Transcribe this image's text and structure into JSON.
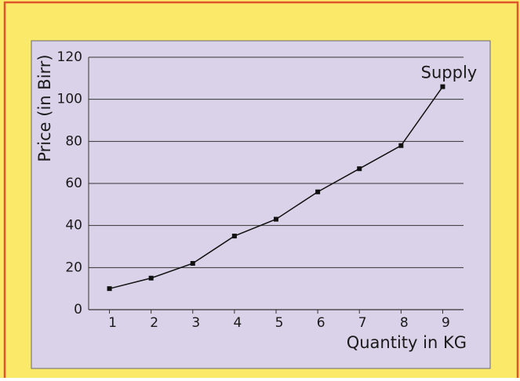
{
  "chart_data": {
    "type": "line",
    "x": [
      1,
      2,
      3,
      4,
      5,
      6,
      7,
      8,
      9
    ],
    "series": [
      {
        "name": "Supply",
        "color": "#111111",
        "values": [
          10,
          15,
          22,
          35,
          43,
          56,
          67,
          78,
          106
        ]
      }
    ],
    "xlabel": "Quantity in KG",
    "ylabel": "Price (in Birr)",
    "xlim": [
      0.5,
      9.5
    ],
    "xticks": [
      1,
      2,
      3,
      4,
      5,
      6,
      7,
      8,
      9
    ],
    "ylim": [
      0,
      120
    ],
    "yticks": [
      0,
      20,
      40,
      60,
      80,
      100,
      120
    ],
    "grid": true
  }
}
